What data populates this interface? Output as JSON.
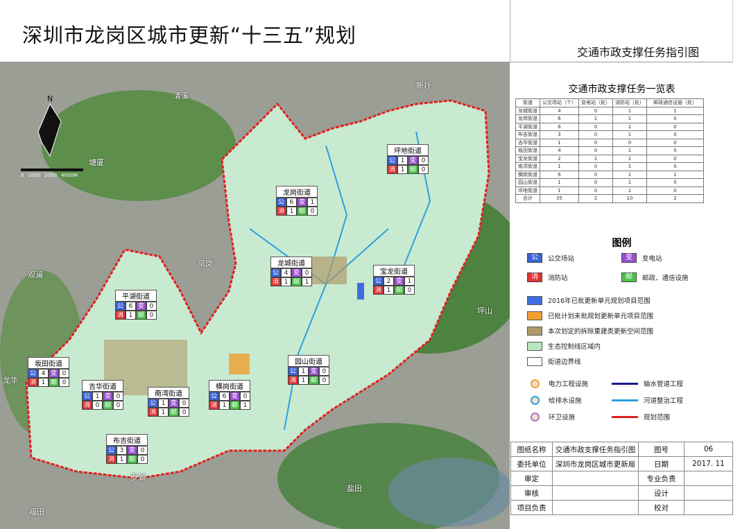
{
  "header": {
    "title": "深圳市龙岗区城市更新“十三五”规划",
    "subtitle": "交通市政支撑任务指引图"
  },
  "table": {
    "title": "交通市政支撑任务一览表",
    "columns": [
      "街道",
      "公交场站（个）",
      "变电站（处）",
      "消防站（处）",
      "邮政通信设施（处）"
    ],
    "rows": [
      [
        "龙城街道",
        "4",
        "0",
        "1",
        "1"
      ],
      [
        "龙岗街道",
        "6",
        "1",
        "1",
        "0"
      ],
      [
        "平湖街道",
        "6",
        "0",
        "1",
        "0"
      ],
      [
        "布吉街道",
        "3",
        "0",
        "1",
        "0"
      ],
      [
        "吉华街道",
        "1",
        "0",
        "0",
        "0"
      ],
      [
        "坂田街道",
        "4",
        "0",
        "1",
        "0"
      ],
      [
        "宝龙街道",
        "2",
        "1",
        "1",
        "0"
      ],
      [
        "南湾街道",
        "1",
        "0",
        "1",
        "0"
      ],
      [
        "横岗街道",
        "6",
        "0",
        "1",
        "1"
      ],
      [
        "园山街道",
        "1",
        "0",
        "1",
        "0"
      ],
      [
        "坪地街道",
        "1",
        "0",
        "1",
        "0"
      ],
      [
        "合计",
        "35",
        "2",
        "10",
        "2"
      ]
    ]
  },
  "legend": {
    "title": "图例",
    "bus": {
      "glyph": "公",
      "label": "公交场站",
      "color": "#3b63d8"
    },
    "substation": {
      "glyph": "变",
      "label": "变电站",
      "color": "#9b4fd0"
    },
    "fire": {
      "glyph": "消",
      "label": "消防站",
      "color": "#e03434"
    },
    "post": {
      "glyph": "邮",
      "label": "邮政、通信设施",
      "color": "#4cc24c"
    },
    "areas": [
      {
        "label": "2016年已批更新单元规划项目范围",
        "color": "#3f6ee0"
      },
      {
        "label": "已批计划未批规划更新单元项目范围",
        "color": "#f0a030"
      },
      {
        "label": "本次划定的拆除重建类更新空间范围",
        "color": "#b09a6a"
      },
      {
        "label": "生态控制线区域内",
        "color": "#b8e6c0"
      },
      {
        "label": "街道边界线",
        "color": "#ffffff"
      }
    ],
    "lines": [
      {
        "label": "电力工程设施",
        "icon": "orange-circle"
      },
      {
        "label": "输水管道工程",
        "color": "#1a1a8a"
      },
      {
        "label": "给排水设施",
        "icon": "cyan-circle"
      },
      {
        "label": "河道整治工程",
        "color": "#2aa0e0"
      },
      {
        "label": "环卫设施",
        "icon": "purple-circle"
      },
      {
        "label": "规划范围",
        "color": "#e02020"
      }
    ]
  },
  "footer": {
    "rows": [
      [
        "图纸名称",
        "交通市政支撑任务指引图",
        "图号",
        "06"
      ],
      [
        "委托单位",
        "深圳市龙岗区城市更新局",
        "日期",
        "2017. 11"
      ],
      [
        "审定",
        "",
        "专业负责",
        ""
      ],
      [
        "审核",
        "",
        "设计",
        ""
      ],
      [
        "项目负责",
        "",
        "校对",
        ""
      ]
    ]
  },
  "map": {
    "north": "N",
    "scale": [
      "0",
      "1000",
      "2000",
      "4000M"
    ],
    "places": [
      "清溪",
      "新圩",
      "塘厦",
      "凤岗",
      "观澜",
      "龙华",
      "坪山",
      "罗湖",
      "福田",
      "盐田"
    ],
    "districts": [
      {
        "name": "坪地街道",
        "bus": "1",
        "sub": "0",
        "fire": "1",
        "post": "0"
      },
      {
        "name": "龙岗街道",
        "bus": "6",
        "sub": "1",
        "fire": "1",
        "post": "0"
      },
      {
        "name": "龙城街道",
        "bus": "4",
        "sub": "0",
        "fire": "1",
        "post": "1"
      },
      {
        "name": "宝龙街道",
        "bus": "2",
        "sub": "1",
        "fire": "1",
        "post": "0"
      },
      {
        "name": "平湖街道",
        "bus": "6",
        "sub": "0",
        "fire": "1",
        "post": "0"
      },
      {
        "name": "坂田街道",
        "bus": "4",
        "sub": "0",
        "fire": "1",
        "post": "0"
      },
      {
        "name": "吉华街道",
        "bus": "1",
        "sub": "0",
        "fire": "0",
        "post": "0"
      },
      {
        "name": "南湾街道",
        "bus": "1",
        "sub": "0",
        "fire": "1",
        "post": "0"
      },
      {
        "name": "横岗街道",
        "bus": "6",
        "sub": "0",
        "fire": "1",
        "post": "1"
      },
      {
        "name": "园山街道",
        "bus": "1",
        "sub": "0",
        "fire": "1",
        "post": "0"
      },
      {
        "name": "布吉街道",
        "bus": "3",
        "sub": "0",
        "fire": "1",
        "post": "0"
      }
    ]
  }
}
